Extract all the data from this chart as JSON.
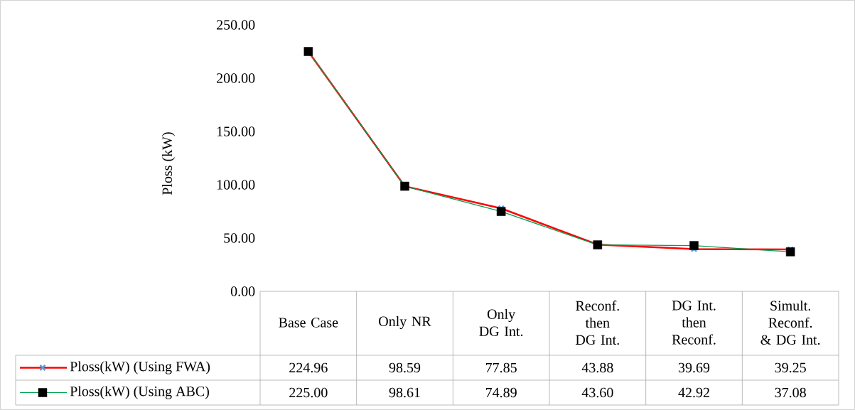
{
  "chart_data": {
    "type": "line",
    "ylabel": "Ploss (kW)",
    "categories": [
      "Base Case",
      "Only NR",
      "Only DG Int.",
      "Reconf. then DG Int.",
      "DG Int. then Reconf.",
      "Simult. Reconf. & DG Int."
    ],
    "series": [
      {
        "name": "Ploss(kW) (Using FWA)",
        "color": "#ff0000",
        "marker": "cross",
        "values": [
          224.96,
          98.59,
          77.85,
          43.88,
          39.69,
          39.25
        ],
        "value_labels": [
          "224.96",
          "98.59",
          "77.85",
          "43.88",
          "39.69",
          "39.25"
        ]
      },
      {
        "name": "Ploss(kW) (Using ABC)",
        "color": "#00a050",
        "marker": "square",
        "values": [
          225.0,
          98.61,
          74.89,
          43.6,
          42.92,
          37.08
        ],
        "value_labels": [
          "225.00",
          "98.61",
          "74.89",
          "43.60",
          "42.92",
          "37.08"
        ]
      }
    ],
    "ylim": [
      0,
      250
    ],
    "yticks": [
      {
        "value": 0,
        "label": "0.00"
      },
      {
        "value": 50,
        "label": "50.00"
      },
      {
        "value": 100,
        "label": "100.00"
      },
      {
        "value": 150,
        "label": "150.00"
      },
      {
        "value": 200,
        "label": "200.00"
      },
      {
        "value": 250,
        "label": "250.00"
      }
    ],
    "legend": "bottom",
    "grid": false
  }
}
